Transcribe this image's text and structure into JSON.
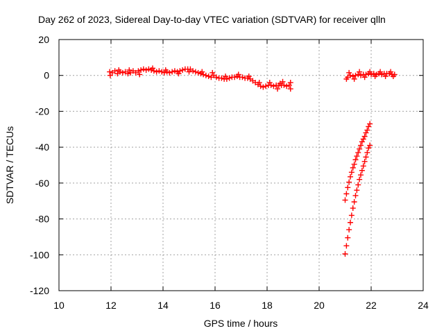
{
  "chart_data": {
    "type": "scatter",
    "title": "Day 262 of 2023, Sidereal Day-to-day VTEC variation (SDTVAR) for receiver qlln",
    "xlabel": "GPS time / hours",
    "ylabel": "SDTVAR / TECUs",
    "xlim": [
      10,
      24
    ],
    "ylim": [
      -120,
      20
    ],
    "xticks": [
      "10",
      "12",
      "14",
      "16",
      "18",
      "20",
      "22",
      "24"
    ],
    "yticks": [
      "20",
      "0",
      "-20",
      "-40",
      "-60",
      "-80",
      "-100",
      "-120"
    ],
    "grid": true,
    "legend": "none",
    "marker": "plus",
    "color": "#ff0000",
    "series": [
      {
        "points": [
          [
            11.95,
            2.0
          ],
          [
            12.05,
            1.5
          ],
          [
            12.15,
            2.5
          ],
          [
            12.25,
            1.0
          ],
          [
            12.35,
            2.0
          ],
          [
            12.45,
            1.5
          ],
          [
            12.55,
            2.0
          ],
          [
            12.65,
            1.0
          ],
          [
            12.75,
            1.5
          ],
          [
            12.85,
            2.5
          ],
          [
            12.95,
            1.5
          ],
          [
            13.05,
            2.5
          ],
          [
            13.15,
            3.0
          ],
          [
            13.25,
            3.5
          ],
          [
            13.35,
            3.0
          ],
          [
            13.45,
            3.5
          ],
          [
            13.55,
            3.0
          ],
          [
            13.65,
            2.5
          ],
          [
            13.75,
            2.0
          ],
          [
            13.85,
            2.5
          ],
          [
            13.95,
            2.0
          ],
          [
            14.05,
            1.5
          ],
          [
            14.15,
            2.0
          ],
          [
            14.25,
            1.5
          ],
          [
            14.35,
            2.0
          ],
          [
            14.45,
            2.5
          ],
          [
            14.55,
            2.0
          ],
          [
            14.65,
            2.5
          ],
          [
            14.75,
            3.0
          ],
          [
            14.85,
            3.5
          ],
          [
            14.95,
            3.5
          ],
          [
            15.05,
            3.5
          ],
          [
            15.15,
            2.5
          ],
          [
            15.25,
            2.0
          ],
          [
            15.35,
            1.5
          ],
          [
            15.45,
            1.0
          ],
          [
            15.55,
            0.5
          ],
          [
            15.65,
            0.0
          ],
          [
            15.75,
            -0.5
          ],
          [
            15.85,
            -1.0
          ],
          [
            15.95,
            0.0
          ],
          [
            16.05,
            -1.0
          ],
          [
            16.15,
            -1.5
          ],
          [
            16.25,
            -1.5
          ],
          [
            16.35,
            -2.0
          ],
          [
            16.45,
            -2.0
          ],
          [
            16.55,
            -1.5
          ],
          [
            16.65,
            -1.0
          ],
          [
            16.75,
            -1.0
          ],
          [
            16.85,
            -0.5
          ],
          [
            16.95,
            -1.0
          ],
          [
            17.05,
            -1.0
          ],
          [
            17.15,
            -1.5
          ],
          [
            17.25,
            -1.5
          ],
          [
            17.35,
            -2.0
          ],
          [
            17.45,
            -3.0
          ],
          [
            17.55,
            -4.0
          ],
          [
            17.65,
            -5.0
          ],
          [
            17.75,
            -6.0
          ],
          [
            17.85,
            -6.5
          ],
          [
            17.95,
            -6.0
          ],
          [
            18.05,
            -5.5
          ],
          [
            18.15,
            -5.5
          ],
          [
            18.25,
            -6.0
          ],
          [
            18.35,
            -5.5
          ],
          [
            18.45,
            -5.5
          ],
          [
            18.55,
            -5.5
          ],
          [
            18.65,
            -5.5
          ],
          [
            18.75,
            -6.0
          ],
          [
            18.85,
            -5.5
          ],
          [
            11.97,
            0.0
          ],
          [
            12.3,
            3.0
          ],
          [
            12.7,
            3.0
          ],
          [
            13.1,
            0.5
          ],
          [
            13.6,
            4.0
          ],
          [
            14.1,
            3.0
          ],
          [
            14.6,
            1.0
          ],
          [
            15.0,
            2.0
          ],
          [
            15.5,
            2.0
          ],
          [
            15.9,
            1.5
          ],
          [
            16.4,
            -0.5
          ],
          [
            16.9,
            0.5
          ],
          [
            17.3,
            -0.5
          ],
          [
            17.7,
            -4.0
          ],
          [
            18.1,
            -4.0
          ],
          [
            18.4,
            -7.5
          ],
          [
            18.6,
            -3.5
          ],
          [
            18.9,
            -7.5
          ],
          [
            18.9,
            -4.0
          ],
          [
            18.5,
            -4.5
          ],
          [
            21.1,
            -1.0
          ],
          [
            21.2,
            0.0
          ],
          [
            21.3,
            -0.5
          ],
          [
            21.4,
            0.0
          ],
          [
            21.5,
            0.5
          ],
          [
            21.6,
            0.0
          ],
          [
            21.7,
            0.5
          ],
          [
            21.8,
            0.5
          ],
          [
            21.9,
            1.0
          ],
          [
            22.0,
            0.5
          ],
          [
            22.1,
            1.0
          ],
          [
            22.2,
            0.5
          ],
          [
            22.3,
            1.0
          ],
          [
            22.4,
            0.5
          ],
          [
            22.5,
            1.0
          ],
          [
            22.6,
            1.0
          ],
          [
            22.7,
            1.0
          ],
          [
            22.8,
            0.5
          ],
          [
            22.9,
            0.5
          ],
          [
            21.05,
            -2.0
          ],
          [
            21.15,
            1.5
          ],
          [
            21.35,
            -2.0
          ],
          [
            21.55,
            2.0
          ],
          [
            21.75,
            -1.0
          ],
          [
            21.95,
            2.0
          ],
          [
            22.15,
            -0.5
          ],
          [
            22.35,
            2.0
          ],
          [
            22.55,
            -0.5
          ],
          [
            22.75,
            2.0
          ],
          [
            22.85,
            -0.5
          ],
          [
            21.0,
            -69.5
          ],
          [
            21.05,
            -66.0
          ],
          [
            21.1,
            -62.5
          ],
          [
            21.15,
            -59.5
          ],
          [
            21.2,
            -56.5
          ],
          [
            21.25,
            -54.0
          ],
          [
            21.3,
            -51.5
          ],
          [
            21.35,
            -49.5
          ],
          [
            21.4,
            -47.0
          ],
          [
            21.45,
            -45.0
          ],
          [
            21.5,
            -43.0
          ],
          [
            21.55,
            -41.0
          ],
          [
            21.6,
            -39.0
          ],
          [
            21.65,
            -37.0
          ],
          [
            21.7,
            -35.5
          ],
          [
            21.75,
            -34.0
          ],
          [
            21.8,
            -32.0
          ],
          [
            21.85,
            -30.5
          ],
          [
            21.9,
            -28.5
          ],
          [
            21.95,
            -27.0
          ],
          [
            21.0,
            -99.5
          ],
          [
            21.05,
            -95.0
          ],
          [
            21.1,
            -90.5
          ],
          [
            21.15,
            -86.0
          ],
          [
            21.2,
            -82.0
          ],
          [
            21.25,
            -78.0
          ],
          [
            21.3,
            -74.0
          ],
          [
            21.35,
            -70.5
          ],
          [
            21.4,
            -67.0
          ],
          [
            21.45,
            -64.0
          ],
          [
            21.5,
            -61.0
          ],
          [
            21.55,
            -58.0
          ],
          [
            21.6,
            -55.5
          ],
          [
            21.65,
            -53.0
          ],
          [
            21.7,
            -50.5
          ],
          [
            21.75,
            -48.0
          ],
          [
            21.8,
            -45.5
          ],
          [
            21.85,
            -43.0
          ],
          [
            21.9,
            -40.5
          ],
          [
            21.95,
            -39.0
          ]
        ]
      }
    ]
  }
}
